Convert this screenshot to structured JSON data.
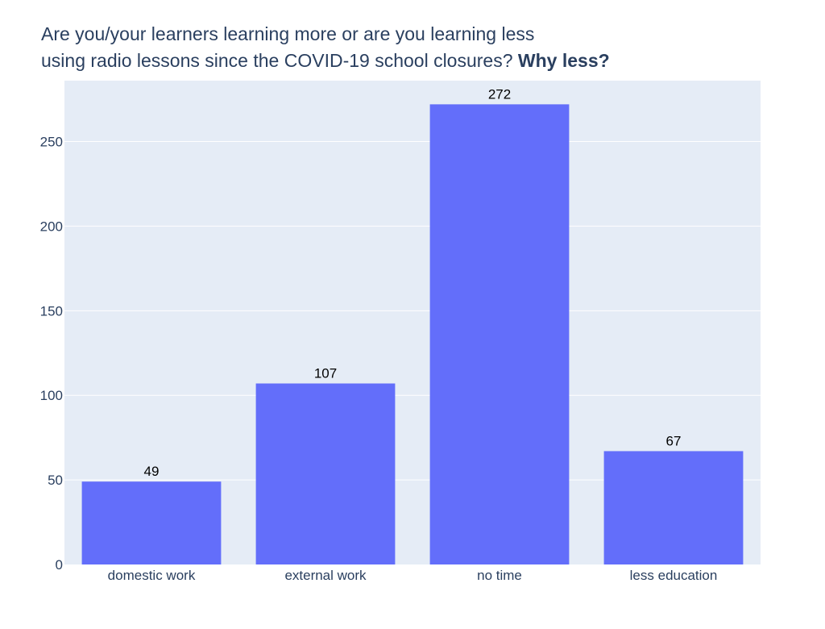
{
  "chart_data": {
    "type": "bar",
    "title_line1": "Are you/your learners learning more or are you learning less",
    "title_line2": "using radio lessons since the COVID-19 school closures?",
    "title_emphasis": "Why less?",
    "xlabel": "",
    "ylabel": "",
    "categories": [
      "domestic work",
      "external work",
      "no time",
      "less education"
    ],
    "values": [
      49,
      107,
      272,
      67
    ],
    "data_labels": [
      "49",
      "107",
      "272",
      "67"
    ],
    "ylim": [
      0,
      286
    ],
    "y_ticks": [
      0,
      50,
      100,
      150,
      200,
      250
    ],
    "y_tick_labels": [
      "0",
      "50",
      "100",
      "150",
      "200",
      "250"
    ],
    "grid": true,
    "legend": "none",
    "colors": {
      "bar": "#636efa",
      "plot_background": "#e5ecf6",
      "grid": "#ffffff",
      "text": "#2a3f5f"
    }
  }
}
